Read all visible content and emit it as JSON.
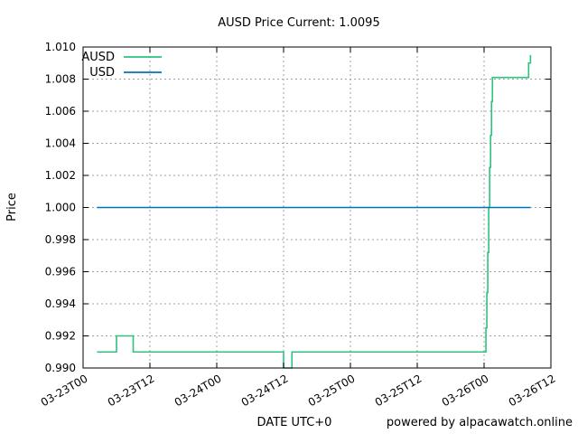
{
  "chart_data": {
    "type": "line",
    "title": "AUSD Price Current: 1.0095",
    "xlabel": "DATE UTC+0",
    "ylabel": "Price",
    "credit": "powered by alpacawatch.online",
    "ylim": [
      0.99,
      1.01
    ],
    "yticks": [
      0.99,
      0.992,
      0.994,
      0.996,
      0.998,
      1.0,
      1.002,
      1.004,
      1.006,
      1.008,
      1.01
    ],
    "ytick_labels": [
      "0.990",
      "0.992",
      "0.994",
      "0.996",
      "0.998",
      "1.000",
      "1.002",
      "1.004",
      "1.006",
      "1.008",
      "1.010"
    ],
    "xlim": [
      "2024-03-23T00:00",
      "2024-03-26T12:00"
    ],
    "xticks": [
      "2024-03-23T00:00",
      "2024-03-23T12:00",
      "2024-03-24T00:00",
      "2024-03-24T12:00",
      "2024-03-25T00:00",
      "2024-03-25T12:00",
      "2024-03-26T00:00",
      "2024-03-26T12:00"
    ],
    "xtick_labels": [
      "03-23T00",
      "03-23T12",
      "03-24T00",
      "03-24T12",
      "03-25T00",
      "03-25T12",
      "03-26T00",
      "03-26T12"
    ],
    "grid": true,
    "legend_position": "top-left",
    "series": [
      {
        "name": "AUSD",
        "color": "#2ec27e",
        "step": true,
        "points": [
          [
            "2024-03-23T02:30",
            0.991
          ],
          [
            "2024-03-23T06:00",
            0.991
          ],
          [
            "2024-03-23T06:00",
            0.992
          ],
          [
            "2024-03-23T08:00",
            0.992
          ],
          [
            "2024-03-23T09:00",
            0.992
          ],
          [
            "2024-03-23T09:00",
            0.991
          ],
          [
            "2024-03-23T12:00",
            0.991
          ],
          [
            "2024-03-24T00:00",
            0.991
          ],
          [
            "2024-03-24T12:00",
            0.991
          ],
          [
            "2024-03-24T12:00",
            0.99
          ],
          [
            "2024-03-24T13:30",
            0.99
          ],
          [
            "2024-03-24T13:30",
            0.991
          ],
          [
            "2024-03-25T00:00",
            0.991
          ],
          [
            "2024-03-25T12:00",
            0.991
          ],
          [
            "2024-03-26T00:00",
            0.991
          ],
          [
            "2024-03-26T00:20",
            0.991
          ],
          [
            "2024-03-26T00:20",
            0.9925
          ],
          [
            "2024-03-26T00:30",
            0.9925
          ],
          [
            "2024-03-26T00:30",
            0.9947
          ],
          [
            "2024-03-26T00:40",
            0.9947
          ],
          [
            "2024-03-26T00:40",
            0.9972
          ],
          [
            "2024-03-26T00:50",
            0.9972
          ],
          [
            "2024-03-26T00:50",
            1.0
          ],
          [
            "2024-03-26T01:00",
            1.0
          ],
          [
            "2024-03-26T01:00",
            1.0025
          ],
          [
            "2024-03-26T01:10",
            1.0025
          ],
          [
            "2024-03-26T01:10",
            1.0045
          ],
          [
            "2024-03-26T01:20",
            1.0045
          ],
          [
            "2024-03-26T01:20",
            1.0066
          ],
          [
            "2024-03-26T01:30",
            1.0066
          ],
          [
            "2024-03-26T01:30",
            1.0081
          ],
          [
            "2024-03-26T08:00",
            1.0081
          ],
          [
            "2024-03-26T08:00",
            1.009
          ],
          [
            "2024-03-26T08:20",
            1.009
          ],
          [
            "2024-03-26T08:20",
            1.0095
          ]
        ]
      },
      {
        "name": "USD",
        "color": "#0072bd",
        "step": false,
        "points": [
          [
            "2024-03-23T02:30",
            1.0
          ],
          [
            "2024-03-26T08:20",
            1.0
          ]
        ]
      }
    ]
  }
}
